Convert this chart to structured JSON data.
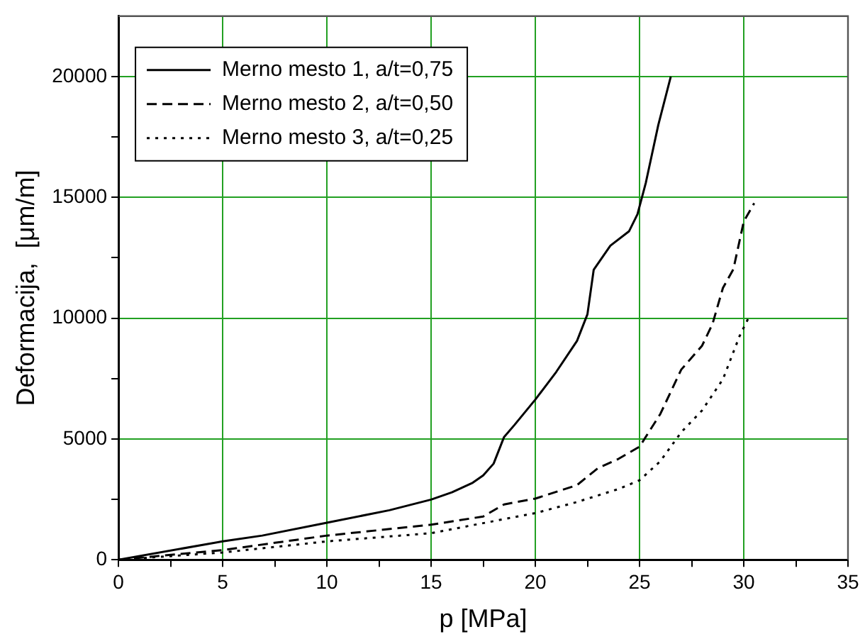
{
  "chart_data": {
    "type": "line",
    "xlabel": "p [MPa]",
    "ylabel": "Deformacija,  [μm/m]",
    "xlim": [
      0,
      35
    ],
    "xticks": [
      0,
      {
        "value": 2.5,
        "label": null
      },
      5,
      {
        "value": 7.5,
        "label": null
      },
      10,
      {
        "value": 12.5,
        "label": null
      },
      15,
      {
        "value": 17.5,
        "label": null
      },
      20,
      {
        "value": 22.5,
        "label": null
      },
      25,
      {
        "value": 27.5,
        "label": null
      },
      30,
      {
        "value": 32.5,
        "label": null
      },
      35
    ],
    "ylim": [
      0,
      22500
    ],
    "yticks": [
      0,
      {
        "value": 2500,
        "label": null
      },
      5000,
      {
        "value": 7500,
        "label": null
      },
      10000,
      {
        "value": 12500,
        "label": null
      },
      15000,
      {
        "value": 17500,
        "label": null
      },
      20000
    ],
    "grid": true,
    "legend": "top left",
    "marker": "none",
    "series": [
      {
        "name": "Merno mesto 1, a/t=0,75",
        "color": "#000000",
        "line_style": "solid",
        "x": [
          0,
          5,
          6.9,
          10,
          13,
          15,
          16,
          17,
          17.5,
          18,
          18.5,
          19,
          20,
          21,
          22,
          22.5,
          22.8,
          23.6,
          24.5,
          24.9,
          25.3,
          25.9,
          26.5
        ],
        "values": [
          0,
          760,
          1000,
          1530,
          2050,
          2490,
          2790,
          3190,
          3490,
          3980,
          5080,
          5580,
          6630,
          7770,
          9060,
          10160,
          12000,
          13000,
          13600,
          14300,
          15600,
          18000,
          20000
        ]
      },
      {
        "name": "Merno mesto 2, a/t=0,50",
        "color": "#000000",
        "line_style": "dashed",
        "x": [
          0,
          5,
          10,
          15,
          17.5,
          18.5,
          20,
          22,
          23,
          24,
          25,
          26,
          27,
          28,
          28.5,
          29,
          29.5,
          30,
          30.5
        ],
        "values": [
          0,
          400,
          1000,
          1450,
          1790,
          2290,
          2530,
          3090,
          3790,
          4180,
          4680,
          6040,
          7870,
          8860,
          9760,
          11250,
          12020,
          14000,
          14760
        ]
      },
      {
        "name": "Merno mesto 3, a/t=0,25",
        "color": "#000000",
        "line_style": "dotted",
        "x": [
          0,
          5,
          10,
          15,
          20,
          22,
          24,
          25,
          26,
          27,
          28,
          29,
          29.8,
          30.2
        ],
        "values": [
          0,
          300,
          760,
          1100,
          1930,
          2390,
          2930,
          3290,
          4080,
          5280,
          6180,
          7470,
          9260,
          9960
        ]
      }
    ]
  }
}
